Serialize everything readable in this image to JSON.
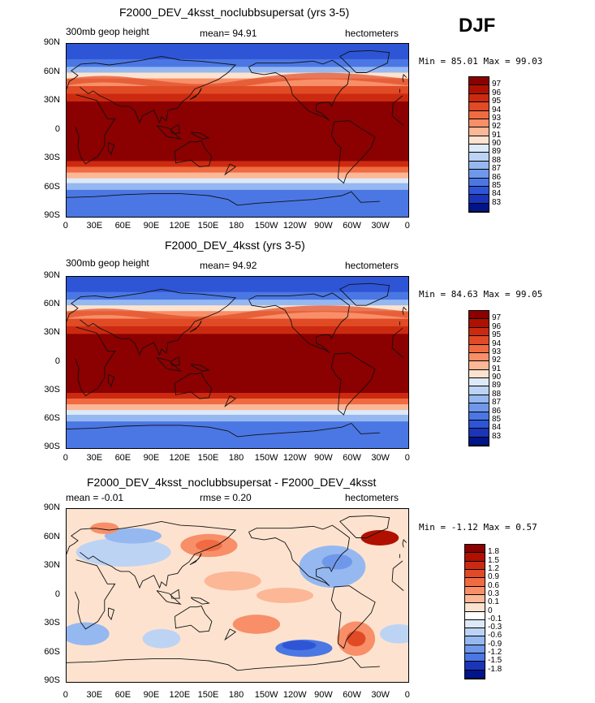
{
  "season": "DJF",
  "panels": [
    {
      "title": "F2000_DEV_4ksst_noclubbsupersat (yrs 3-5)",
      "left_label": "300mb geop height",
      "center_label": "mean=  94.91",
      "right_label": "hectometers",
      "minmax": "Min =  85.01 Max =  99.03",
      "kind": "field"
    },
    {
      "title": "F2000_DEV_4ksst (yrs 3-5)",
      "left_label": "300mb geop height",
      "center_label": "mean=  94.92",
      "right_label": "hectometers",
      "minmax": "Min =  84.63 Max =  99.05",
      "kind": "field"
    },
    {
      "title": "F2000_DEV_4ksst_noclubbsupersat - F2000_DEV_4ksst",
      "left_label": "mean =  -0.01",
      "center_label": "rmse =   0.20",
      "right_label": "hectometers",
      "minmax": "Min =  -1.12 Max =   0.57",
      "kind": "diff"
    }
  ],
  "lat_ticks": [
    "90N",
    "60N",
    "30N",
    "0",
    "30S",
    "60S",
    "90S"
  ],
  "lon_ticks": [
    "0",
    "30E",
    "60E",
    "90E",
    "120E",
    "150E",
    "180",
    "150W",
    "120W",
    "90W",
    "60W",
    "30W",
    "0"
  ],
  "field_colorbar": {
    "labels": [
      "97",
      "96",
      "95",
      "94",
      "93",
      "92",
      "91",
      "90",
      "89",
      "88",
      "87",
      "86",
      "85",
      "84",
      "83"
    ],
    "colors": [
      "#8b0000",
      "#b01000",
      "#cc2a10",
      "#e04a25",
      "#f06b42",
      "#f88f68",
      "#fcb797",
      "#fde3cf",
      "#dde9f8",
      "#bcd3f4",
      "#96b8f0",
      "#6f98ea",
      "#4b77e4",
      "#2e55d6",
      "#1a35b8",
      "#00158a"
    ]
  },
  "diff_colorbar": {
    "labels": [
      "1.8",
      "1.5",
      "1.2",
      "0.9",
      "0.6",
      "0.3",
      "0.1",
      "0",
      "-0.1",
      "-0.3",
      "-0.6",
      "-0.9",
      "-1.2",
      "-1.5",
      "-1.8"
    ],
    "colors": [
      "#8b0000",
      "#b01000",
      "#cc2a10",
      "#e04a25",
      "#f06b42",
      "#f88f68",
      "#fcb797",
      "#fde3cf",
      "#ffffff",
      "#dde9f8",
      "#bcd3f4",
      "#96b8f0",
      "#6f98ea",
      "#4b77e4",
      "#1a35b8",
      "#00158a"
    ]
  },
  "colors": {
    "frame": "#000000",
    "coast": "#111111"
  }
}
